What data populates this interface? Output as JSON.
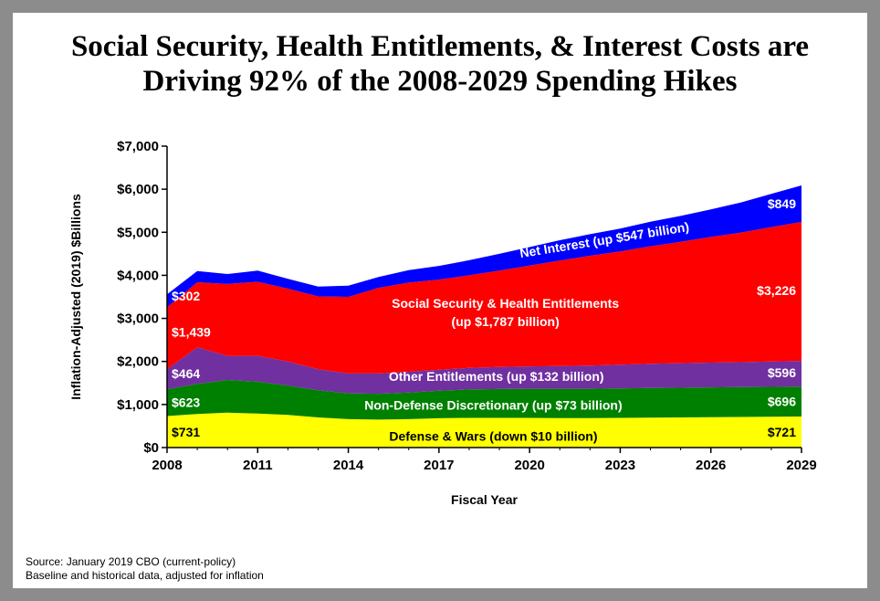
{
  "title_line1": "Social Security, Health Entitlements, & Interest Costs are",
  "title_line2": "Driving 92% of  the 2008-2029 Spending Hikes",
  "source_line1": "Source: January 2019 CBO (current-policy)",
  "source_line2": "Baseline and historical data, adjusted for inflation",
  "chart_data": {
    "type": "area",
    "stacked": true,
    "xlabel": "Fiscal Year",
    "ylabel": "Inflation-Adjusted (2019) $Billions",
    "xlim": [
      2008,
      2029
    ],
    "ylim": [
      0,
      7000
    ],
    "x_ticks": [
      "2008",
      "2011",
      "2014",
      "2017",
      "2020",
      "2023",
      "2026",
      "2029"
    ],
    "y_ticks": [
      "$0",
      "$1,000",
      "$2,000",
      "$3,000",
      "$4,000",
      "$5,000",
      "$6,000",
      "$7,000"
    ],
    "x": [
      2008,
      2009,
      2010,
      2011,
      2012,
      2013,
      2014,
      2015,
      2016,
      2017,
      2018,
      2019,
      2020,
      2021,
      2022,
      2023,
      2024,
      2025,
      2026,
      2027,
      2028,
      2029
    ],
    "series": [
      {
        "color": "#ffff00",
        "values": [
          731,
          780,
          810,
          790,
          760,
          700,
          660,
          650,
          660,
          680,
          690,
          690,
          690,
          685,
          685,
          690,
          695,
          700,
          705,
          710,
          715,
          721
        ]
      },
      {
        "color": "#008000",
        "values": [
          623,
          700,
          760,
          740,
          680,
          630,
          600,
          600,
          620,
          640,
          660,
          670,
          675,
          680,
          680,
          685,
          690,
          690,
          692,
          694,
          695,
          696
        ]
      },
      {
        "color": "#7030a0",
        "values": [
          464,
          850,
          560,
          600,
          560,
          490,
          460,
          470,
          480,
          490,
          500,
          510,
          520,
          530,
          540,
          550,
          560,
          570,
          575,
          580,
          590,
          596
        ]
      },
      {
        "color": "#ff0000",
        "values": [
          1439,
          1510,
          1670,
          1720,
          1690,
          1690,
          1780,
          1990,
          2070,
          2090,
          2150,
          2240,
          2340,
          2450,
          2550,
          2630,
          2730,
          2820,
          2920,
          3010,
          3120,
          3226
        ]
      },
      {
        "color": "#0000ff",
        "values": [
          302,
          260,
          230,
          260,
          230,
          230,
          260,
          250,
          290,
          320,
          350,
          390,
          430,
          470,
          500,
          530,
          570,
          600,
          640,
          700,
          770,
          849
        ]
      }
    ],
    "annotations": {
      "left_values": [
        "$731",
        "$623",
        "$464",
        "$1,439",
        "$302"
      ],
      "right_values": [
        "$721",
        "$696",
        "$596",
        "$3,226",
        "$849"
      ],
      "defense": "Defense & Wars  (down $10 billion)",
      "nondefense": "Non-Defense Discretionary (up $73 billion)",
      "other": "Other Entitlements (up $132 billion)",
      "ss_line1": "Social Security & Health Entitlements",
      "ss_line2": "(up $1,787 billion)",
      "net_interest": "Net Interest (up $547 billion)"
    },
    "grid": false,
    "legend": "none"
  }
}
